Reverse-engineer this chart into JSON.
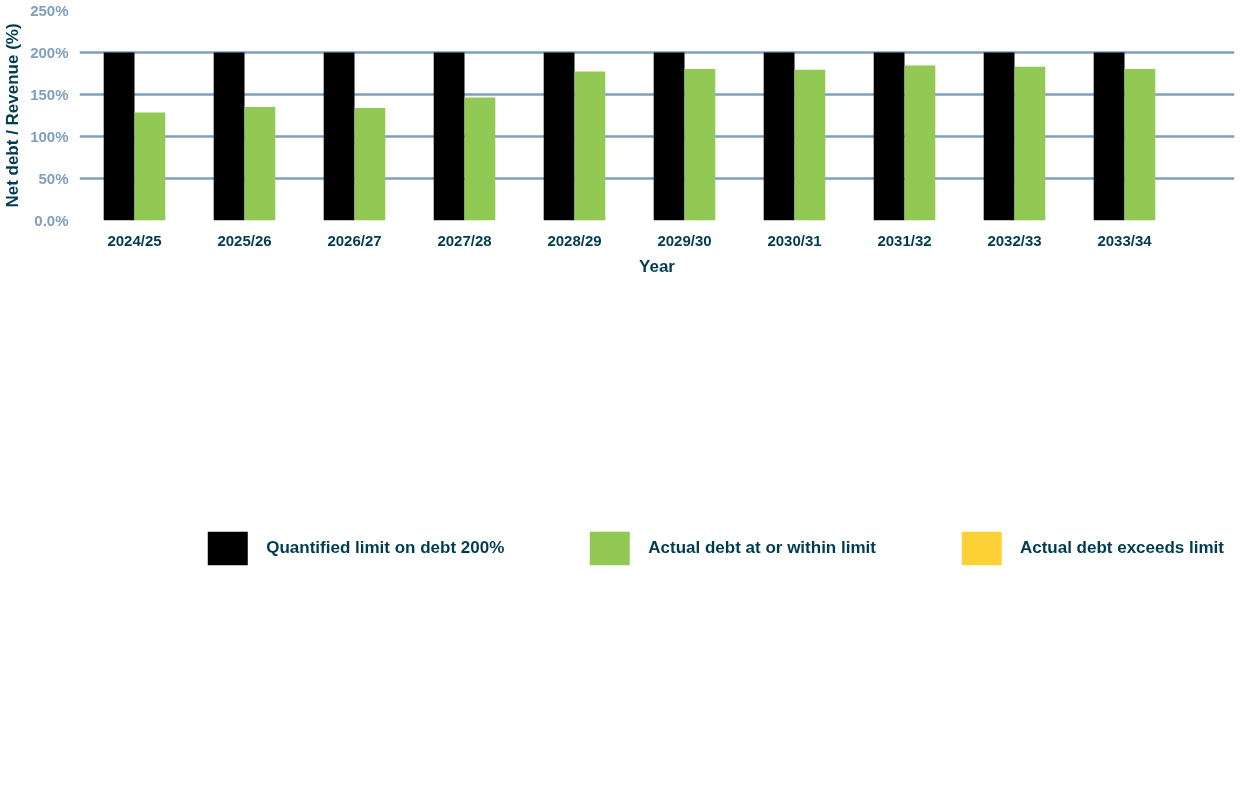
{
  "chart_data": {
    "type": "bar",
    "xlabel": "Year",
    "ylabel": "Net debt / Revenue (%)",
    "categories": [
      "2024/25",
      "2025/26",
      "2026/27",
      "2027/28",
      "2028/29",
      "2029/30",
      "2030/31",
      "2031/32",
      "2032/33",
      "2033/34"
    ],
    "series": [
      {
        "name": "Quantified limit on debt 200%",
        "color": "#000000",
        "values": [
          200,
          200,
          200,
          200,
          200,
          200,
          200,
          200,
          200,
          200
        ]
      },
      {
        "name": "Actual debt at or within limit",
        "color": "#92c954",
        "values": [
          128.5,
          135,
          134,
          146.5,
          177.5,
          180.5,
          179.5,
          184.5,
          183,
          180.5
        ]
      },
      {
        "name": "Actual debt exceeds limit",
        "color": "#fed136",
        "values": [
          null,
          null,
          null,
          null,
          null,
          null,
          null,
          null,
          null,
          null
        ]
      }
    ],
    "ylim": [
      0,
      250
    ],
    "yticks": [
      {
        "value": 0,
        "label": "0.0%"
      },
      {
        "value": 50,
        "label": "50%"
      },
      {
        "value": 100,
        "label": "100%"
      },
      {
        "value": 150,
        "label": "150%"
      },
      {
        "value": 200,
        "label": "200%"
      },
      {
        "value": 250,
        "label": "250%"
      }
    ],
    "grid": "y",
    "legend": "bottom"
  }
}
